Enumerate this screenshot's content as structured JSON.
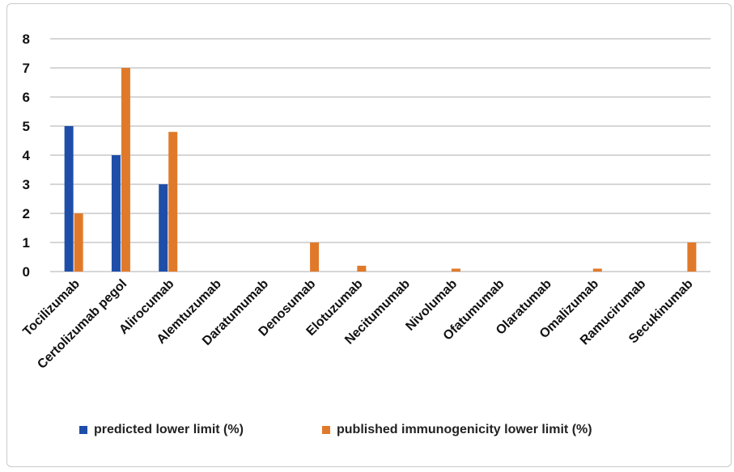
{
  "chart_data": {
    "type": "bar",
    "title": "",
    "xlabel": "",
    "ylabel": "",
    "ylim": [
      0,
      8
    ],
    "yticks": [
      0,
      1,
      2,
      3,
      4,
      5,
      6,
      7,
      8
    ],
    "grid": true,
    "legend_position": "bottom",
    "categories": [
      "Tocilizumab",
      "Certolizumab pegol",
      "Alirocumab",
      "Alemtuzumab",
      "Daratumumab",
      "Denosumab",
      "Elotuzumab",
      "Necitumumab",
      "Nivolumab",
      "Ofatumumab",
      "Olaratumab",
      "Omalizumab",
      "Ramucirumab",
      "Secukinumab"
    ],
    "series": [
      {
        "name": "predicted lower limit (%)",
        "color": "#1f4ea8",
        "values": [
          5,
          4,
          3,
          0,
          0,
          0,
          0,
          0,
          0,
          0,
          0,
          0,
          0,
          0
        ]
      },
      {
        "name": "published immunogenicity lower limit (%)",
        "color": "#e07a2a",
        "values": [
          2,
          7,
          4.8,
          0,
          0,
          1,
          0.2,
          0,
          0.1,
          0,
          0,
          0.1,
          0,
          1
        ]
      }
    ]
  }
}
